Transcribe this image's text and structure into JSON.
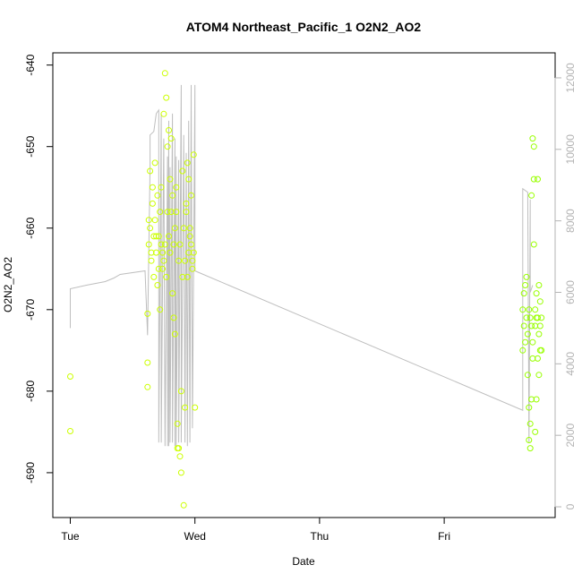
{
  "chart_data": {
    "type": "scatter",
    "title": "ATOM4 Northeast_Pacific_1 O2N2_AO2",
    "xlabel": "Date",
    "ylabel": "O2N2_AO2",
    "x_ticks": [
      "Tue",
      "Wed",
      "Thu",
      "Fri"
    ],
    "x_tick_values": [
      0,
      1,
      2,
      3
    ],
    "xlim": [
      -0.14,
      3.89
    ],
    "ylim": [
      -695.5,
      -638.5
    ],
    "y_ticks": [
      -640,
      -650,
      -660,
      -670,
      -680,
      -690
    ],
    "y2lim": [
      -300,
      12700
    ],
    "y2_ticks": [
      0,
      2000,
      4000,
      6000,
      8000,
      10000,
      12000
    ],
    "grid": false,
    "series": [
      {
        "type": "line",
        "axis": "right",
        "color": "#bebebe",
        "x": [
          0.0,
          0.0,
          0.13,
          0.28,
          0.35,
          0.4,
          0.6,
          0.62,
          0.64,
          0.64,
          0.67,
          0.69,
          0.71,
          0.71,
          0.73,
          0.73,
          0.75,
          0.76,
          0.78,
          0.78,
          0.79,
          0.79,
          0.8,
          0.8,
          0.82,
          0.82,
          0.84,
          0.84,
          0.85,
          0.85,
          0.87,
          0.87,
          0.89,
          0.89,
          0.91,
          0.92,
          0.93,
          0.94,
          0.95,
          0.96,
          0.97,
          0.98,
          1.0,
          1.0,
          3.63,
          3.63,
          3.67,
          3.68,
          3.69,
          3.69,
          3.71
        ],
        "y": [
          5000,
          6100,
          6200,
          6300,
          6400,
          6500,
          6600,
          4800,
          9500,
          10400,
          10500,
          11000,
          11100,
          1800,
          11000,
          1800,
          10300,
          1700,
          9800,
          1700,
          10800,
          1700,
          9500,
          1800,
          11000,
          1800,
          10300,
          1700,
          9800,
          1700,
          9700,
          1800,
          11800,
          1800,
          10400,
          1800,
          9900,
          1700,
          10800,
          1800,
          11800,
          2200,
          11800,
          6600,
          2700,
          8900,
          8800,
          1800,
          8600,
          6000,
          6200
        ]
      },
      {
        "type": "scatter",
        "axis": "left",
        "color": "#ccff00",
        "x": [
          0.0,
          0.0,
          0.62,
          0.62,
          0.62,
          0.63,
          0.63,
          0.64,
          0.64,
          0.65,
          0.65,
          0.66,
          0.66,
          0.67,
          0.67,
          0.68,
          0.68,
          0.69,
          0.69,
          0.7,
          0.7,
          0.71,
          0.71,
          0.72,
          0.72,
          0.73,
          0.73,
          0.74,
          0.74,
          0.75,
          0.75,
          0.76,
          0.76,
          0.77,
          0.77,
          0.78,
          0.78,
          0.79,
          0.79,
          0.8,
          0.8,
          0.81,
          0.81,
          0.82,
          0.82,
          0.83,
          0.83,
          0.84,
          0.84,
          0.85,
          0.85,
          0.86,
          0.86,
          0.87,
          0.87,
          0.88,
          0.88,
          0.89,
          0.89,
          0.9,
          0.9,
          0.91,
          0.91,
          0.92,
          0.92,
          0.93,
          0.93,
          0.94,
          0.94,
          0.95,
          0.95,
          0.96,
          0.96,
          0.97,
          0.97,
          0.98,
          0.98,
          0.99,
          0.99,
          1.0
        ],
        "y": [
          -678.2,
          -684.9,
          -679.5,
          -676.5,
          -670.5,
          -662,
          -659,
          -653,
          -660,
          -664,
          -663,
          -655,
          -657,
          -661,
          -666,
          -659,
          -652,
          -661,
          -663,
          -667,
          -656,
          -661,
          -665,
          -670,
          -658,
          -662,
          -655,
          -663,
          -665,
          -646,
          -664,
          -662,
          -641,
          -666,
          -644,
          -658,
          -650,
          -661,
          -648,
          -654,
          -663,
          -649,
          -658,
          -656,
          -668,
          -671,
          -662,
          -673,
          -660,
          -658,
          -655,
          -687,
          -684,
          -687,
          -664,
          -688,
          -662,
          -680,
          -690,
          -666,
          -653,
          -694,
          -660,
          -682,
          -664,
          -657,
          -658,
          -666,
          -652,
          -654,
          -663,
          -660,
          -661,
          -656,
          -662,
          -664,
          -665,
          -651,
          -663,
          -682
        ]
      },
      {
        "type": "scatter",
        "axis": "left",
        "color": "#99ff00",
        "x": [
          3.63,
          3.63,
          3.64,
          3.64,
          3.65,
          3.65,
          3.66,
          3.66,
          3.67,
          3.67,
          3.68,
          3.68,
          3.68,
          3.69,
          3.69,
          3.69,
          3.7,
          3.7,
          3.7,
          3.71,
          3.71,
          3.71,
          3.72,
          3.72,
          3.72,
          3.73,
          3.73,
          3.73,
          3.74,
          3.74,
          3.74,
          3.75,
          3.75,
          3.75,
          3.76,
          3.76,
          3.76,
          3.77,
          3.77,
          3.77,
          3.78,
          3.78
        ],
        "y": [
          -675,
          -670,
          -668,
          -672,
          -674,
          -667,
          -671,
          -666,
          -673,
          -678,
          -670,
          -682,
          -686,
          -671,
          -684,
          -687,
          -672,
          -681,
          -656,
          -674,
          -676,
          -649,
          -650,
          -654,
          -662,
          -672,
          -670,
          -685,
          -681,
          -671,
          -668,
          -654,
          -671,
          -676,
          -673,
          -667,
          -678,
          -675,
          -669,
          -672,
          -671,
          -675
        ]
      }
    ]
  }
}
